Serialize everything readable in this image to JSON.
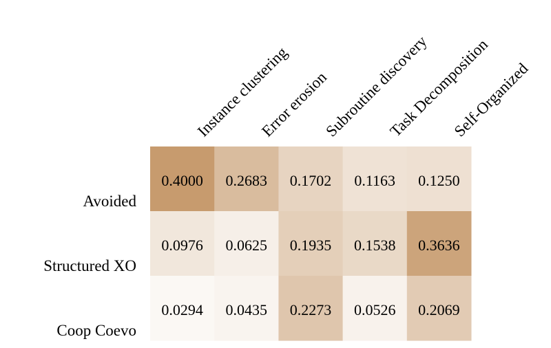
{
  "chart_data": {
    "type": "heatmap",
    "title": "",
    "xlabel": "",
    "ylabel": "",
    "columns": [
      "Instance clustering",
      "Error erosion",
      "Subroutine discovery",
      "Task Decomposition",
      "Self-Organized"
    ],
    "rows": [
      "Avoided",
      "Structured XO",
      "Coop Coevo"
    ],
    "values": [
      [
        0.4,
        0.2683,
        0.1702,
        0.1163,
        0.125
      ],
      [
        0.0976,
        0.0625,
        0.1935,
        0.1538,
        0.3636
      ],
      [
        0.0294,
        0.0435,
        0.2273,
        0.0526,
        0.2069
      ]
    ],
    "cell_labels": [
      [
        "0.4000",
        "0.2683",
        "0.1702",
        "0.1163",
        "0.1250"
      ],
      [
        "0.0976",
        "0.0625",
        "0.1935",
        "0.1538",
        "0.3636"
      ],
      [
        "0.0294",
        "0.0435",
        "0.2273",
        "0.0526",
        "0.2069"
      ]
    ],
    "colormap": {
      "low": "#ffffff",
      "high": "#c79b6e"
    },
    "color_range": [
      0,
      0.4
    ],
    "legend": "none",
    "grid": false
  }
}
